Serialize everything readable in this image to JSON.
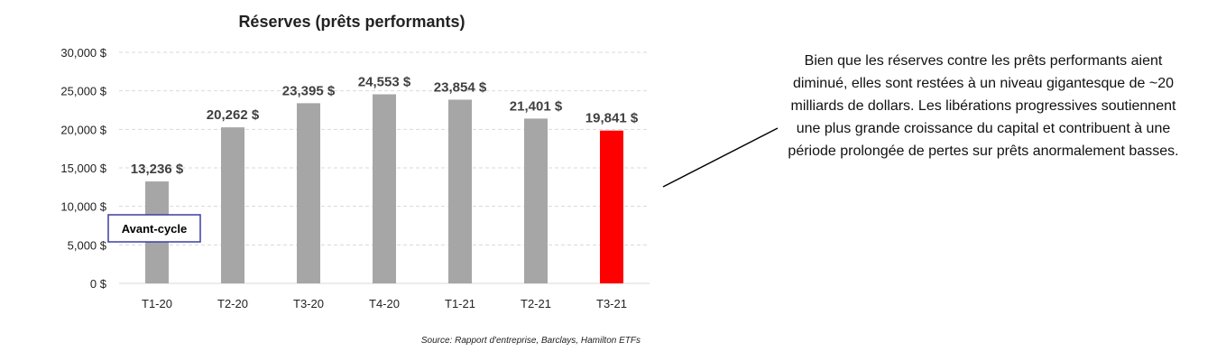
{
  "chart_data": {
    "type": "bar",
    "title": "Réserves (prêts performants)",
    "categories": [
      "T1-20",
      "T2-20",
      "T3-20",
      "T4-20",
      "T1-21",
      "T2-21",
      "T3-21"
    ],
    "values": [
      13236,
      20262,
      23395,
      24553,
      23854,
      21401,
      19841
    ],
    "data_labels": [
      "13,236 $",
      "20,262 $",
      "23,395 $",
      "24,553 $",
      "23,854 $",
      "21,401 $",
      "19,841 $"
    ],
    "y_ticks": [
      0,
      5000,
      10000,
      15000,
      20000,
      25000,
      30000
    ],
    "y_tick_labels": [
      "0 $",
      "5,000 $",
      "10,000 $",
      "15,000 $",
      "20,000 $",
      "25,000 $",
      "30,000 $"
    ],
    "ylim": [
      0,
      30000
    ],
    "grid": true,
    "bar_color": "#a6a6a6",
    "highlight_color": "#ff0000",
    "highlight_index": 6,
    "annotation": {
      "text": "Avant-cycle",
      "category": "T1-20"
    },
    "xlabel": "",
    "ylabel": ""
  },
  "source_note": "Source: Rapport d'entreprise, Barclays, Hamilton ETFs",
  "commentary": "Bien que les réserves contre les prêts performants aient diminué, elles sont restées à un niveau gigantesque de ~20 milliards de dollars. Les libérations progressives soutiennent une plus grande croissance du capital et contribuent à une période prolongée de pertes sur prêts anormalement basses."
}
